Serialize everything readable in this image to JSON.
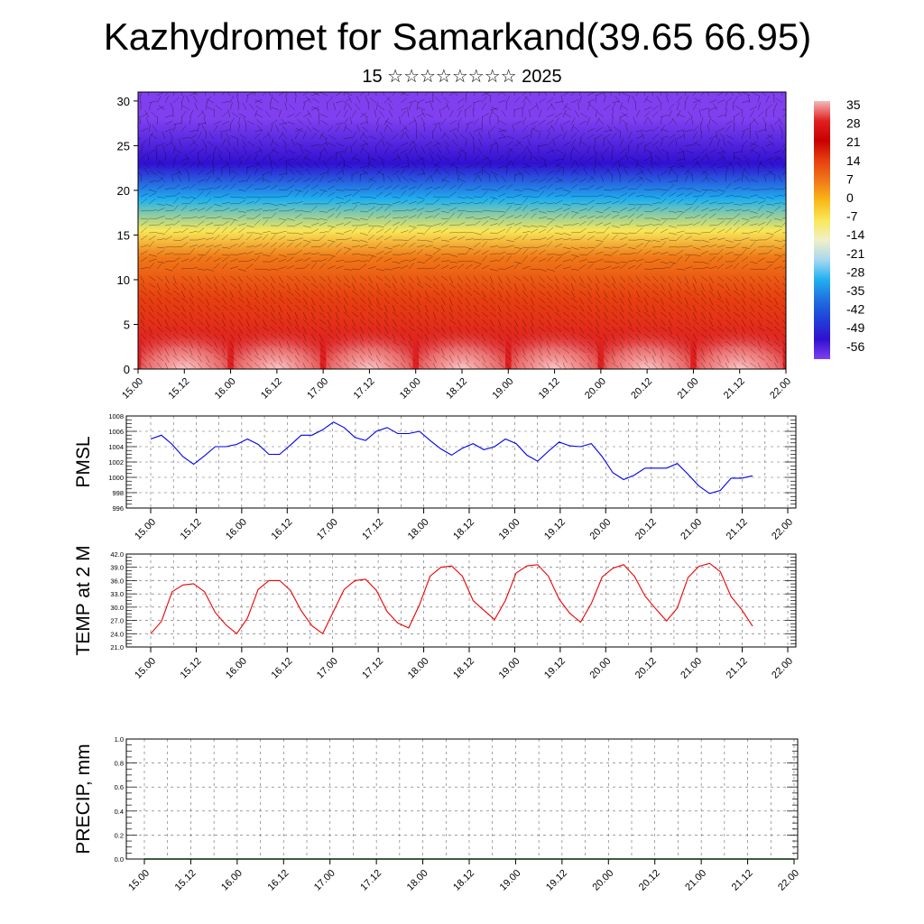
{
  "header": {
    "title": "Kazhydromet for Samarkand(39.65 66.95)",
    "subtitle": "15 ☆☆☆☆☆☆☆☆ 2025"
  },
  "chart_data": [
    {
      "type": "heatmap",
      "title": "",
      "xlabel": "",
      "ylabel": "",
      "x_ticks": [
        "15.00",
        "15.12",
        "16.00",
        "16.12",
        "17.00",
        "17.12",
        "18.00",
        "18.12",
        "19.00",
        "19.12",
        "20.00",
        "20.12",
        "21.00",
        "21.12",
        "22.00"
      ],
      "ylim": [
        0,
        31
      ],
      "y_ticks": [
        0,
        5,
        10,
        15,
        20,
        25,
        30
      ],
      "colorbar": {
        "labels": [
          "35",
          "28",
          "21",
          "14",
          "7",
          "0",
          "-7",
          "-14",
          "-21",
          "-28",
          "-35",
          "-42",
          "-49",
          "-56"
        ],
        "values": [
          35,
          28,
          21,
          14,
          7,
          0,
          -7,
          -14,
          -21,
          -28,
          -35,
          -42,
          -49,
          -56
        ],
        "colors": [
          "#f4b8b8",
          "#e02020",
          "#c80000",
          "#e84010",
          "#f07818",
          "#f8b818",
          "#f8e858",
          "#f0f0c8",
          "#a8d8f0",
          "#20b0f0",
          "#2070e0",
          "#2040d8",
          "#3010d0",
          "#8040f0"
        ]
      },
      "layers": [
        {
          "height_range": [
            0,
            5
          ],
          "temperature": 30,
          "note": "daily warm maxima at 12 UTC"
        },
        {
          "height_range": [
            5,
            11
          ],
          "temperature": 14
        },
        {
          "height_range": [
            11,
            14
          ],
          "temperature": 5
        },
        {
          "height_range": [
            14,
            17
          ],
          "temperature": -7
        },
        {
          "height_range": [
            17,
            21
          ],
          "temperature": -28
        },
        {
          "height_range": [
            21,
            25
          ],
          "temperature": -49
        },
        {
          "height_range": [
            25,
            31
          ],
          "temperature": -60
        }
      ]
    },
    {
      "type": "line",
      "ylabel": "PMSL",
      "ylim": [
        996,
        1008
      ],
      "y_ticks": [
        996,
        998,
        1000,
        1002,
        1004,
        1006,
        1008
      ],
      "x_ticks": [
        "15.00",
        "15.12",
        "16.00",
        "16.12",
        "17.00",
        "17.12",
        "18.00",
        "18.12",
        "19.00",
        "19.12",
        "20.00",
        "20.12",
        "21.00",
        "21.12",
        "22.00"
      ],
      "series": [
        {
          "color": "#0000ee",
          "values": [
            1005.0,
            1005.5,
            1004.3,
            1002.7,
            1001.7,
            1002.8,
            1004.0,
            1004.0,
            1004.3,
            1005.0,
            1004.3,
            1003.0,
            1003.0,
            1004.2,
            1005.5,
            1005.5,
            1006.2,
            1007.2,
            1006.5,
            1005.2,
            1004.8,
            1006.0,
            1006.5,
            1005.7,
            1005.7,
            1006.0,
            1004.8,
            1003.7,
            1002.9,
            1003.8,
            1004.4,
            1003.6,
            1004.0,
            1005.0,
            1004.4,
            1002.9,
            1002.1,
            1003.4,
            1004.6,
            1004.1,
            1004.0,
            1004.4,
            1002.7,
            1000.6,
            999.7,
            1000.3,
            1001.2,
            1001.2,
            1001.2,
            1001.8,
            1000.4,
            998.9,
            997.9,
            998.3,
            999.9,
            999.9,
            1000.2
          ]
        }
      ]
    },
    {
      "type": "line",
      "ylabel": "TEMP at 2 M",
      "ylim": [
        21,
        42
      ],
      "y_ticks": [
        "21.0",
        "24.0",
        "27.0",
        "30.0",
        "33.0",
        "36.0",
        "39.0",
        "42.0"
      ],
      "x_ticks": [
        "15.00",
        "15.12",
        "16.00",
        "16.12",
        "17.00",
        "17.12",
        "18.00",
        "18.12",
        "19.00",
        "19.12",
        "20.00",
        "20.12",
        "21.00",
        "21.12",
        "22.00"
      ],
      "series": [
        {
          "color": "#ee0000",
          "values": [
            24.0,
            26.8,
            33.5,
            35.0,
            35.3,
            33.5,
            28.8,
            26.0,
            24.0,
            27.5,
            34.0,
            36.0,
            36.0,
            33.8,
            29.2,
            25.8,
            24.0,
            29.0,
            34.0,
            36.0,
            36.3,
            33.8,
            29.0,
            26.4,
            25.3,
            30.5,
            37.0,
            39.0,
            39.3,
            37.0,
            31.5,
            29.3,
            27.2,
            31.5,
            37.7,
            39.3,
            39.6,
            37.0,
            31.8,
            28.6,
            26.6,
            30.8,
            36.8,
            38.8,
            39.6,
            37.0,
            32.5,
            29.6,
            26.9,
            29.8,
            36.7,
            39.2,
            39.9,
            38.0,
            32.4,
            29.4,
            25.7
          ]
        }
      ]
    },
    {
      "type": "line",
      "ylabel": "PRECIP, mm",
      "ylim": [
        0,
        1
      ],
      "y_ticks": [
        "0.0",
        "0.2",
        "0.4",
        "0.6",
        "0.8",
        "1.0"
      ],
      "x_ticks": [
        "15.00",
        "15.12",
        "16.00",
        "16.12",
        "17.00",
        "17.12",
        "18.00",
        "18.12",
        "19.00",
        "19.12",
        "20.00",
        "20.12",
        "21.00",
        "21.12",
        "22.00"
      ],
      "series": [
        {
          "color": "#006400",
          "values": [
            0,
            0,
            0,
            0,
            0,
            0,
            0,
            0,
            0,
            0,
            0,
            0,
            0,
            0,
            0,
            0,
            0,
            0,
            0,
            0,
            0,
            0,
            0,
            0,
            0,
            0,
            0,
            0,
            0,
            0,
            0,
            0,
            0,
            0,
            0,
            0,
            0,
            0,
            0,
            0,
            0,
            0,
            0,
            0,
            0,
            0,
            0,
            0,
            0,
            0,
            0,
            0,
            0,
            0,
            0,
            0,
            0
          ]
        }
      ]
    }
  ]
}
